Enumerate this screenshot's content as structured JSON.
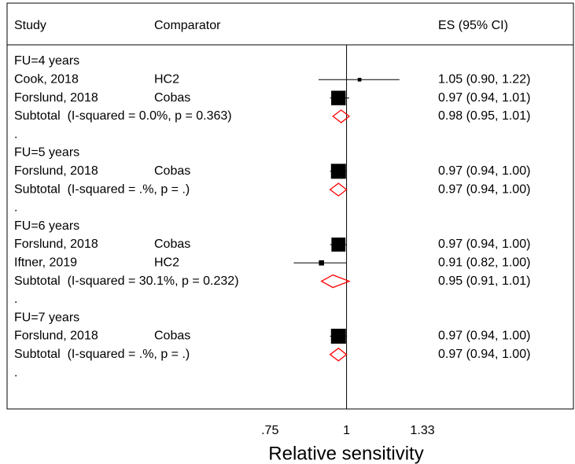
{
  "chart_data": {
    "type": "forest",
    "columns": [
      "Study",
      "Comparator",
      "ES (95% CI)"
    ],
    "xlabel": "Relative sensitivity",
    "log_x": true,
    "xlim": [
      0.66,
      1.51
    ],
    "xticks": [
      {
        "value": 0.75,
        "label": ".75"
      },
      1,
      1.33
    ],
    "null_line": 1,
    "square_color": "#000000",
    "diamond_color": "#ff0000",
    "groups": [
      {
        "name": "FU=4 years",
        "studies": [
          {
            "study": "Cook, 2018",
            "comparator": "HC2",
            "es": 1.05,
            "lo": 0.9,
            "hi": 1.22,
            "label": "1.05 (0.90, 1.22)",
            "weight": 6
          },
          {
            "study": "Forslund, 2018",
            "comparator": "Cobas",
            "es": 0.97,
            "lo": 0.94,
            "hi": 1.01,
            "label": "0.97 (0.94, 1.01)",
            "weight": 94
          }
        ],
        "subtotal": {
          "label": "Subtotal  (I-squared = 0.0%, p = 0.363)",
          "es": 0.98,
          "lo": 0.95,
          "hi": 1.01,
          "ci_label": "0.98 (0.95, 1.01)"
        },
        "separator": "."
      },
      {
        "name": "FU=5 years",
        "studies": [
          {
            "study": "Forslund, 2018",
            "comparator": "Cobas",
            "es": 0.97,
            "lo": 0.94,
            "hi": 1.0,
            "label": "0.97 (0.94, 1.00)",
            "weight": 100
          }
        ],
        "subtotal": {
          "label": "Subtotal  (I-squared = .%, p = .)",
          "es": 0.97,
          "lo": 0.94,
          "hi": 1.0,
          "ci_label": "0.97 (0.94, 1.00)"
        },
        "separator": "."
      },
      {
        "name": "FU=6 years",
        "studies": [
          {
            "study": "Forslund, 2018",
            "comparator": "Cobas",
            "es": 0.97,
            "lo": 0.94,
            "hi": 1.0,
            "label": "0.97 (0.94, 1.00)",
            "weight": 88
          },
          {
            "study": "Iftner, 2019",
            "comparator": "HC2",
            "es": 0.91,
            "lo": 0.82,
            "hi": 1.0,
            "label": "0.91 (0.82, 1.00)",
            "weight": 12
          }
        ],
        "subtotal": {
          "label": "Subtotal  (I-squared = 30.1%, p = 0.232)",
          "es": 0.95,
          "lo": 0.91,
          "hi": 1.01,
          "ci_label": "0.95 (0.91, 1.01)"
        },
        "separator": "."
      },
      {
        "name": "FU=7 years",
        "studies": [
          {
            "study": "Forslund, 2018",
            "comparator": "Cobas",
            "es": 0.97,
            "lo": 0.94,
            "hi": 1.0,
            "label": "0.97 (0.94, 1.00)",
            "weight": 100
          }
        ],
        "subtotal": {
          "label": "Subtotal  (I-squared = .%, p = .)",
          "es": 0.97,
          "lo": 0.94,
          "hi": 1.0,
          "ci_label": "0.97 (0.94, 1.00)"
        },
        "separator": "."
      }
    ]
  }
}
